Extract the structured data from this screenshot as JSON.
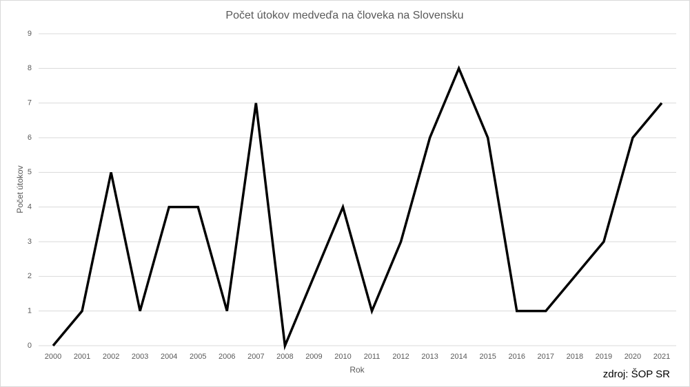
{
  "chart_data": {
    "type": "line",
    "title": "Počet útokov medveďa na človeka na Slovensku",
    "x_label": "Rok",
    "y_label": "Počet útokov",
    "annotation": "zdroj: ŠOP SR",
    "categories": [
      "2000",
      "2001",
      "2002",
      "2003",
      "2004",
      "2005",
      "2006",
      "2007",
      "2008",
      "2009",
      "2010",
      "2011",
      "2012",
      "2013",
      "2014",
      "2015",
      "2016",
      "2017",
      "2018",
      "2019",
      "2020",
      "2021"
    ],
    "series": [
      {
        "name": "Počet útokov",
        "color": "#000000",
        "values": [
          0,
          1,
          5,
          1,
          4,
          4,
          1,
          7,
          0,
          2,
          4,
          1,
          3,
          6,
          8,
          6,
          1,
          1,
          2,
          3,
          6,
          7
        ]
      }
    ],
    "ylim": [
      0,
      9
    ],
    "yticks": [
      0,
      1,
      2,
      3,
      4,
      5,
      6,
      7,
      8,
      9
    ],
    "grid": true
  }
}
